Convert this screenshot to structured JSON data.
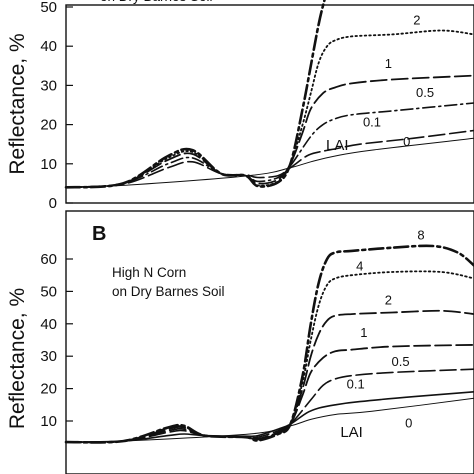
{
  "chart_data": [
    {
      "type": "line",
      "panel": "A",
      "panel_letter": "",
      "title_lines": [
        "on Dry Barnes Soil"
      ],
      "ylabel": "Reflectance, %",
      "xlabel": "",
      "ylim": [
        0,
        50
      ],
      "yticks": [
        0,
        10,
        20,
        30,
        40,
        50
      ],
      "grid": false,
      "label_prefix": "LAI",
      "series": [
        {
          "name": "0",
          "dash": "solid",
          "width": 1.0,
          "x": [
            0,
            0.14,
            0.45,
            0.55,
            0.6,
            0.66,
            0.75,
            1.0
          ],
          "y": [
            4.0,
            4.5,
            7.0,
            9.0,
            10.5,
            12.0,
            13.5,
            16.5
          ]
        },
        {
          "name": "0.1",
          "dash": "longdash",
          "width": 1.6,
          "x": [
            0,
            0.14,
            0.25,
            0.31,
            0.38,
            0.44,
            0.47,
            0.52,
            0.55,
            0.59,
            0.62,
            0.66,
            0.72,
            0.85,
            1.0
          ],
          "y": [
            4.0,
            4.8,
            9.0,
            10.5,
            7.5,
            7.2,
            6.5,
            7.0,
            9.0,
            12.0,
            13.0,
            13.8,
            15.0,
            16.5,
            18.5
          ]
        },
        {
          "name": "0.5",
          "dash": "dashdot",
          "width": 1.6,
          "x": [
            0,
            0.14,
            0.25,
            0.31,
            0.38,
            0.44,
            0.47,
            0.52,
            0.55,
            0.6,
            0.63,
            0.66,
            0.7,
            0.8,
            1.0
          ],
          "y": [
            4.0,
            5.0,
            10.0,
            11.5,
            7.5,
            7.0,
            5.5,
            6.5,
            9.5,
            17.0,
            20.0,
            21.5,
            22.5,
            23.5,
            25.5
          ]
        },
        {
          "name": "1",
          "dash": "longdash",
          "width": 1.8,
          "x": [
            0,
            0.14,
            0.25,
            0.31,
            0.38,
            0.44,
            0.47,
            0.52,
            0.55,
            0.58,
            0.6,
            0.63,
            0.66,
            0.7,
            0.8,
            1.0
          ],
          "y": [
            4.0,
            5.0,
            11.0,
            12.5,
            7.5,
            7.0,
            5.0,
            6.0,
            10.0,
            18.0,
            24.0,
            28.0,
            29.5,
            30.5,
            31.5,
            32.5
          ]
        },
        {
          "name": "2",
          "dash": "dotted",
          "width": 1.8,
          "x": [
            0,
            0.14,
            0.25,
            0.31,
            0.38,
            0.44,
            0.47,
            0.52,
            0.55,
            0.58,
            0.6,
            0.62,
            0.64,
            0.66,
            0.7,
            0.8,
            0.92,
            1.0
          ],
          "y": [
            4.0,
            5.0,
            11.5,
            13.0,
            7.5,
            7.0,
            4.5,
            5.5,
            10.0,
            20.0,
            28.0,
            36.0,
            40.0,
            41.5,
            42.5,
            43.0,
            44.0,
            43.0
          ]
        },
        {
          "name": "",
          "dash": "dashdotbold",
          "width": 2.6,
          "x": [
            0,
            0.14,
            0.25,
            0.31,
            0.38,
            0.44,
            0.47,
            0.52,
            0.55,
            0.58,
            0.6,
            0.62,
            0.634
          ],
          "y": [
            4.0,
            5.0,
            12.0,
            13.5,
            7.5,
            7.0,
            4.3,
            5.3,
            10.0,
            24.0,
            35.0,
            46.0,
            52.0
          ]
        }
      ],
      "curve_labels": [
        {
          "text": "2",
          "at": [
            0.86,
            45.5
          ]
        },
        {
          "text": "1",
          "at": [
            0.79,
            34.5
          ]
        },
        {
          "text": "0.5",
          "at": [
            0.88,
            27.0
          ]
        },
        {
          "text": "0.1",
          "at": [
            0.75,
            19.5
          ]
        },
        {
          "text": "LAI",
          "at": [
            0.665,
            13.5
          ],
          "big": true
        },
        {
          "text": "0",
          "at": [
            0.835,
            14.5
          ]
        }
      ]
    },
    {
      "type": "line",
      "panel": "B",
      "panel_letter": "B",
      "title_lines": [
        "High N Corn",
        "on Dry Barnes Soil"
      ],
      "ylabel": "Reflectance, %",
      "xlabel": "",
      "ylim": [
        0,
        66
      ],
      "yticks": [
        10,
        20,
        30,
        40,
        50,
        60
      ],
      "grid": false,
      "label_prefix": "LAI",
      "series": [
        {
          "name": "0",
          "dash": "solid",
          "width": 1.0,
          "x": [
            0,
            0.14,
            0.45,
            0.55,
            0.6,
            0.66,
            0.75,
            1.0
          ],
          "y": [
            3.5,
            3.8,
            6.0,
            8.5,
            10.5,
            12.0,
            13.0,
            17.0
          ]
        },
        {
          "name": "0.1",
          "dash": "solid",
          "width": 1.6,
          "x": [
            0,
            0.14,
            0.25,
            0.29,
            0.34,
            0.44,
            0.47,
            0.52,
            0.55,
            0.59,
            0.62,
            0.66,
            0.72,
            0.85,
            1.0
          ],
          "y": [
            3.5,
            3.8,
            5.5,
            6.0,
            5.5,
            5.3,
            5.5,
            7.5,
            9.0,
            12.5,
            14.0,
            15.0,
            16.0,
            17.5,
            19.0
          ]
        },
        {
          "name": "0.5",
          "dash": "longdash",
          "width": 1.6,
          "x": [
            0,
            0.14,
            0.25,
            0.29,
            0.34,
            0.44,
            0.47,
            0.52,
            0.55,
            0.6,
            0.63,
            0.66,
            0.7,
            0.8,
            1.0
          ],
          "y": [
            3.5,
            3.8,
            6.5,
            7.0,
            5.5,
            5.0,
            5.0,
            7.0,
            9.0,
            16.5,
            21.0,
            23.0,
            24.0,
            25.0,
            26.0
          ]
        },
        {
          "name": "1",
          "dash": "longdash",
          "width": 1.8,
          "x": [
            0,
            0.14,
            0.25,
            0.29,
            0.34,
            0.44,
            0.47,
            0.52,
            0.55,
            0.58,
            0.6,
            0.63,
            0.66,
            0.7,
            0.8,
            1.0
          ],
          "y": [
            3.5,
            3.8,
            7.0,
            7.5,
            5.5,
            5.0,
            4.5,
            6.5,
            9.0,
            18.0,
            25.0,
            29.5,
            31.5,
            32.0,
            33.0,
            33.5
          ]
        },
        {
          "name": "2",
          "dash": "longdash",
          "width": 1.8,
          "x": [
            0,
            0.14,
            0.25,
            0.29,
            0.34,
            0.44,
            0.47,
            0.52,
            0.55,
            0.58,
            0.6,
            0.62,
            0.64,
            0.66,
            0.7,
            0.8,
            0.92,
            1.0
          ],
          "y": [
            3.5,
            3.8,
            7.5,
            8.0,
            5.5,
            5.0,
            4.3,
            6.3,
            9.0,
            20.0,
            30.0,
            37.0,
            41.0,
            42.5,
            43.0,
            43.5,
            44.0,
            43.0
          ]
        },
        {
          "name": "4",
          "dash": "dotted",
          "width": 1.8,
          "x": [
            0,
            0.14,
            0.25,
            0.29,
            0.34,
            0.44,
            0.47,
            0.52,
            0.55,
            0.58,
            0.6,
            0.62,
            0.64,
            0.66,
            0.7,
            0.8,
            0.92,
            1.0
          ],
          "y": [
            3.5,
            3.8,
            7.8,
            8.2,
            5.5,
            5.0,
            4.2,
            6.2,
            9.0,
            22.0,
            35.0,
            46.0,
            52.0,
            54.0,
            55.0,
            56.0,
            56.0,
            54.0
          ]
        },
        {
          "name": "8",
          "dash": "dashdotbold",
          "width": 2.6,
          "x": [
            0,
            0.14,
            0.25,
            0.29,
            0.34,
            0.44,
            0.47,
            0.52,
            0.55,
            0.58,
            0.6,
            0.62,
            0.64,
            0.66,
            0.7,
            0.8,
            0.9,
            0.96,
            1.0
          ],
          "y": [
            3.5,
            3.8,
            8.0,
            8.5,
            5.5,
            5.0,
            4.0,
            6.0,
            9.0,
            24.0,
            40.0,
            53.0,
            60.0,
            62.0,
            62.5,
            63.5,
            64.0,
            62.0,
            58.0
          ]
        }
      ],
      "curve_labels": [
        {
          "text": "8",
          "at": [
            0.87,
            66.0
          ]
        },
        {
          "text": "4",
          "at": [
            0.72,
            56.5
          ]
        },
        {
          "text": "2",
          "at": [
            0.79,
            46.0
          ]
        },
        {
          "text": "1",
          "at": [
            0.73,
            36.0
          ]
        },
        {
          "text": "0.5",
          "at": [
            0.82,
            27.0
          ]
        },
        {
          "text": "0.1",
          "at": [
            0.71,
            20.0
          ]
        },
        {
          "text": "LAI",
          "at": [
            0.7,
            5.0
          ],
          "big": true
        },
        {
          "text": "0",
          "at": [
            0.84,
            8.0
          ]
        }
      ]
    }
  ]
}
